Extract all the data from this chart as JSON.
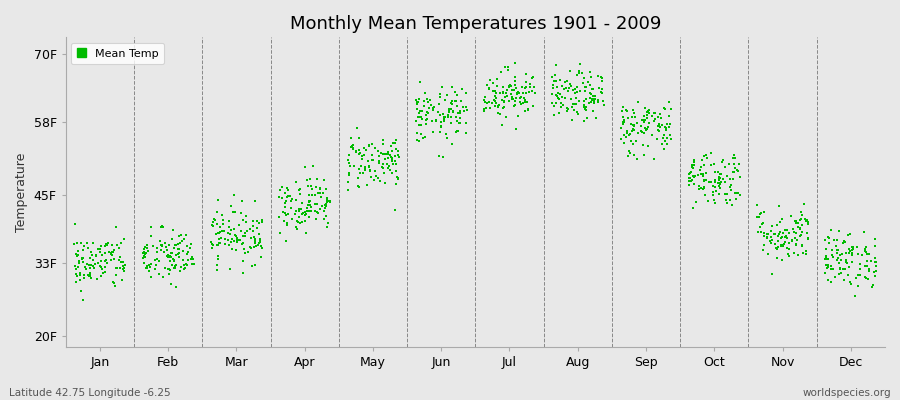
{
  "title": "Monthly Mean Temperatures 1901 - 2009",
  "ylabel": "Temperature",
  "ytick_labels": [
    "20F",
    "33F",
    "45F",
    "58F",
    "70F"
  ],
  "ytick_values": [
    20,
    33,
    45,
    58,
    70
  ],
  "ylim": [
    18,
    73
  ],
  "xlabel_months": [
    "Jan",
    "Feb",
    "Mar",
    "Apr",
    "May",
    "Jun",
    "Jul",
    "Aug",
    "Sep",
    "Oct",
    "Nov",
    "Dec"
  ],
  "dot_color": "#00bb00",
  "bg_color": "#e8e8e8",
  "legend_label": "Mean Temp",
  "footer_left": "Latitude 42.75 Longitude -6.25",
  "footer_right": "worldspecies.org",
  "n_years": 109,
  "monthly_mean_F": [
    33.0,
    34.0,
    38.0,
    43.5,
    51.0,
    59.0,
    63.0,
    62.5,
    57.0,
    48.0,
    38.0,
    33.5
  ],
  "monthly_std_F": [
    2.5,
    2.5,
    2.5,
    2.5,
    2.5,
    2.5,
    2.2,
    2.2,
    2.5,
    2.5,
    2.5,
    2.5
  ],
  "seed": 42
}
